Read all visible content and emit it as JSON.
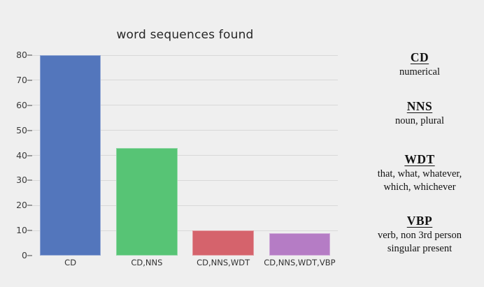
{
  "colors": {
    "background": "#efefef",
    "gridline": "#d8d8d8",
    "title_text": "#262626",
    "bar_blue": "#5376bc",
    "bar_green": "#57c475",
    "bar_red": "#d5636c",
    "bar_purple": "#b57cc5"
  },
  "chart_data": {
    "type": "bar",
    "title": "word sequences found",
    "categories": [
      "CD",
      "CD,NNS",
      "CD,NNS,WDT",
      "CD,NNS,WDT,VBP"
    ],
    "values": [
      80,
      43,
      10,
      9
    ],
    "bar_colors": [
      "#5376bc",
      "#57c475",
      "#d5636c",
      "#b57cc5"
    ],
    "xlabel": "",
    "ylabel": "",
    "ylim": [
      0,
      80
    ],
    "yticks": [
      0,
      10,
      20,
      30,
      40,
      50,
      60,
      70,
      80
    ],
    "grid": true,
    "grid_color": "#d8d8d8",
    "legend_position": "right-margin"
  },
  "legend": {
    "entries": [
      {
        "term": "CD",
        "definition_lines": [
          "numerical"
        ]
      },
      {
        "term": "NNS",
        "definition_lines": [
          "noun, plural"
        ]
      },
      {
        "term": "WDT",
        "definition_lines": [
          "that, what, whatever,",
          "which, whichever"
        ]
      },
      {
        "term": "VBP",
        "definition_lines": [
          "verb, non 3rd person",
          "singular present"
        ]
      }
    ]
  }
}
